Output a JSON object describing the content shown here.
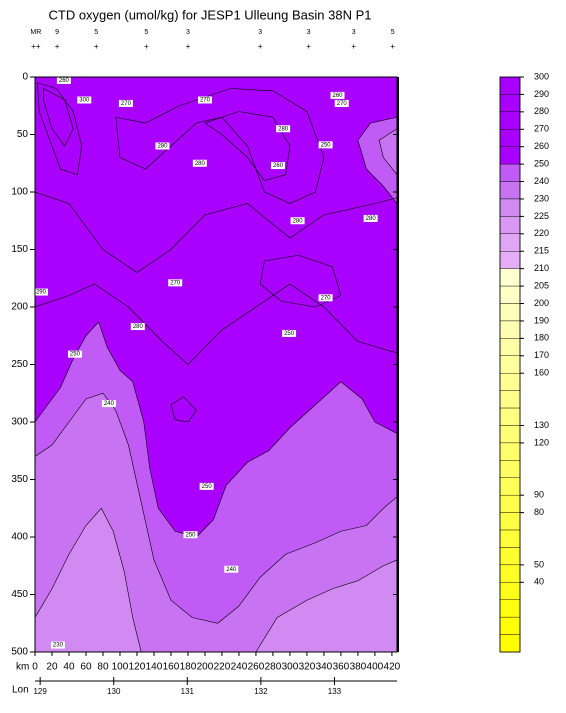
{
  "chart_data": {
    "type": "contour",
    "title": "CTD oxygen (umol/kg) for JESP1 Ulleung Basin 38N P1",
    "xlabel": "km",
    "lon_label": "Lon",
    "xlim": [
      0,
      426
    ],
    "xticks": [
      0,
      20,
      40,
      60,
      80,
      100,
      120,
      140,
      160,
      180,
      200,
      220,
      240,
      260,
      280,
      300,
      320,
      340,
      360,
      380,
      400,
      420
    ],
    "ylim": [
      0,
      500
    ],
    "yticks": [
      0,
      50,
      100,
      150,
      200,
      250,
      300,
      350,
      400,
      450,
      500
    ],
    "lonlim": [
      128.93,
      133.85
    ],
    "lonticks": [
      129,
      130,
      131,
      132,
      133
    ],
    "stations": {
      "x": [
        1,
        26,
        72,
        131,
        180,
        265,
        322,
        375,
        421
      ],
      "labels": [
        "MR",
        "9",
        "5",
        "5",
        "3",
        "3",
        "3",
        "3",
        "5"
      ],
      "markers": [
        "++",
        "+",
        "+",
        "+",
        "+",
        "+",
        "+",
        "+",
        "+"
      ]
    },
    "colorbar": {
      "boundaries": [
        300,
        290,
        280,
        270,
        260,
        250,
        240,
        230,
        225,
        220,
        215,
        210,
        205,
        200,
        190,
        180,
        170,
        160,
        150,
        140,
        130,
        120,
        110,
        100,
        90,
        80,
        70,
        60,
        50,
        40,
        30,
        20,
        10,
        0
      ],
      "colors": [
        "#aa00ff",
        "#aa00ff",
        "#aa00ff",
        "#aa00ff",
        "#aa00ff",
        "#c05cf5",
        "#c874f2",
        "#d08af2",
        "#d898f4",
        "#e0a6f6",
        "#e6aef8",
        "#ffffd0",
        "#ffffc6",
        "#ffffbc",
        "#ffffb2",
        "#ffffa8",
        "#ffff9e",
        "#ffff94",
        "#ffff8a",
        "#ffff80",
        "#ffff76",
        "#ffff6c",
        "#ffff62",
        "#ffff58",
        "#ffff4e",
        "#ffff44",
        "#ffff3a",
        "#ffff30",
        "#ffff26",
        "#ffff1c",
        "#ffff12",
        "#ffff08",
        "#ffff00"
      ],
      "ticks": [
        300,
        290,
        280,
        270,
        260,
        250,
        240,
        230,
        225,
        220,
        215,
        210,
        205,
        200,
        190,
        180,
        170,
        160,
        130,
        120,
        90,
        80,
        50,
        40
      ]
    },
    "base_level": 250,
    "regions": [
      {
        "level": 240,
        "points": [
          [
            0,
            300
          ],
          [
            15,
            285
          ],
          [
            30,
            270
          ],
          [
            45,
            245
          ],
          [
            60,
            225
          ],
          [
            75,
            213
          ],
          [
            85,
            235
          ],
          [
            100,
            255
          ],
          [
            115,
            265
          ],
          [
            128,
            300
          ],
          [
            135,
            340
          ],
          [
            145,
            375
          ],
          [
            165,
            395
          ],
          [
            190,
            400
          ],
          [
            210,
            385
          ],
          [
            225,
            355
          ],
          [
            250,
            335
          ],
          [
            275,
            325
          ],
          [
            300,
            305
          ],
          [
            330,
            285
          ],
          [
            360,
            265
          ],
          [
            385,
            280
          ],
          [
            400,
            300
          ],
          [
            426,
            310
          ],
          [
            426,
            500
          ],
          [
            0,
            500
          ]
        ]
      },
      {
        "level": 240,
        "points": [
          [
            380,
            55
          ],
          [
            395,
            40
          ],
          [
            426,
            35
          ],
          [
            426,
            110
          ],
          [
            410,
            95
          ],
          [
            390,
            80
          ]
        ]
      },
      {
        "level": 230,
        "points": [
          [
            0,
            330
          ],
          [
            20,
            320
          ],
          [
            40,
            300
          ],
          [
            60,
            280
          ],
          [
            80,
            275
          ],
          [
            95,
            290
          ],
          [
            110,
            320
          ],
          [
            125,
            370
          ],
          [
            140,
            420
          ],
          [
            160,
            455
          ],
          [
            185,
            470
          ],
          [
            215,
            475
          ],
          [
            240,
            460
          ],
          [
            265,
            435
          ],
          [
            295,
            415
          ],
          [
            330,
            405
          ],
          [
            360,
            395
          ],
          [
            390,
            390
          ],
          [
            410,
            375
          ],
          [
            426,
            365
          ],
          [
            426,
            500
          ],
          [
            0,
            500
          ]
        ]
      },
      {
        "level": 230,
        "points": [
          [
            405,
            55
          ],
          [
            426,
            45
          ],
          [
            426,
            85
          ],
          [
            410,
            70
          ]
        ]
      },
      {
        "level": 225,
        "points": [
          [
            0,
            470
          ],
          [
            20,
            445
          ],
          [
            40,
            415
          ],
          [
            60,
            390
          ],
          [
            78,
            375
          ],
          [
            92,
            395
          ],
          [
            105,
            430
          ],
          [
            115,
            470
          ],
          [
            125,
            500
          ],
          [
            0,
            500
          ]
        ]
      },
      {
        "level": 225,
        "points": [
          [
            260,
            500
          ],
          [
            285,
            470
          ],
          [
            320,
            455
          ],
          [
            350,
            445
          ],
          [
            380,
            438
          ],
          [
            410,
            425
          ],
          [
            426,
            420
          ],
          [
            426,
            500
          ]
        ]
      }
    ],
    "contour_lines": [
      {
        "level": 270,
        "closed": true,
        "points": [
          [
            3,
            5
          ],
          [
            25,
            10
          ],
          [
            45,
            30
          ],
          [
            55,
            60
          ],
          [
            50,
            85
          ],
          [
            30,
            80
          ],
          [
            15,
            50
          ],
          [
            5,
            30
          ]
        ]
      },
      {
        "level": 280,
        "closed": true,
        "points": [
          [
            10,
            10
          ],
          [
            35,
            20
          ],
          [
            45,
            45
          ],
          [
            35,
            60
          ],
          [
            20,
            45
          ],
          [
            10,
            20
          ]
        ]
      },
      {
        "level": 270,
        "closed": true,
        "points": [
          [
            95,
            35
          ],
          [
            130,
            40
          ],
          [
            170,
            25
          ],
          [
            230,
            10
          ],
          [
            280,
            12
          ],
          [
            320,
            30
          ],
          [
            340,
            70
          ],
          [
            330,
            100
          ],
          [
            300,
            110
          ],
          [
            270,
            100
          ],
          [
            250,
            60
          ],
          [
            220,
            35
          ],
          [
            190,
            40
          ],
          [
            160,
            60
          ],
          [
            130,
            80
          ],
          [
            100,
            70
          ]
        ]
      },
      {
        "level": 280,
        "closed": true,
        "points": [
          [
            200,
            40
          ],
          [
            240,
            30
          ],
          [
            280,
            35
          ],
          [
            300,
            60
          ],
          [
            295,
            85
          ],
          [
            270,
            90
          ],
          [
            250,
            70
          ],
          [
            220,
            50
          ]
        ]
      },
      {
        "level": 260,
        "closed": false,
        "points": [
          [
            0,
            100
          ],
          [
            40,
            110
          ],
          [
            80,
            150
          ],
          [
            120,
            170
          ],
          [
            160,
            150
          ],
          [
            200,
            120
          ],
          [
            250,
            110
          ],
          [
            300,
            140
          ],
          [
            340,
            120
          ],
          [
            400,
            110
          ],
          [
            426,
            105
          ]
        ]
      },
      {
        "level": 260,
        "closed": false,
        "points": [
          [
            0,
            200
          ],
          [
            40,
            190
          ],
          [
            70,
            180
          ],
          [
            110,
            200
          ],
          [
            150,
            230
          ],
          [
            180,
            250
          ],
          [
            220,
            220
          ],
          [
            260,
            200
          ],
          [
            300,
            180
          ],
          [
            340,
            200
          ],
          [
            380,
            230
          ],
          [
            426,
            240
          ]
        ]
      },
      {
        "level": 270,
        "closed": true,
        "points": [
          [
            160,
            285
          ],
          [
            175,
            278
          ],
          [
            190,
            290
          ],
          [
            180,
            300
          ],
          [
            165,
            298
          ]
        ]
      },
      {
        "level": 280,
        "closed": true,
        "points": [
          [
            270,
            160
          ],
          [
            310,
            155
          ],
          [
            350,
            165
          ],
          [
            360,
            190
          ],
          [
            330,
            200
          ],
          [
            290,
            195
          ],
          [
            265,
            180
          ]
        ]
      }
    ],
    "contour_labels": [
      {
        "text": 260,
        "x": 34,
        "y": 3
      },
      {
        "text": 300,
        "x": 58,
        "y": 20
      },
      {
        "text": 270,
        "x": 107,
        "y": 23
      },
      {
        "text": 270,
        "x": 200,
        "y": 20
      },
      {
        "text": 280,
        "x": 292,
        "y": 45
      },
      {
        "text": 260,
        "x": 356,
        "y": 16
      },
      {
        "text": 270,
        "x": 361,
        "y": 23
      },
      {
        "text": 250,
        "x": 342,
        "y": 59
      },
      {
        "text": 280,
        "x": 150,
        "y": 60
      },
      {
        "text": 280,
        "x": 194,
        "y": 75
      },
      {
        "text": 260,
        "x": 286,
        "y": 77
      },
      {
        "text": 280,
        "x": 309,
        "y": 125
      },
      {
        "text": 280,
        "x": 395,
        "y": 123
      },
      {
        "text": 290,
        "x": 7,
        "y": 187
      },
      {
        "text": 270,
        "x": 165,
        "y": 179
      },
      {
        "text": 270,
        "x": 342,
        "y": 192
      },
      {
        "text": 280,
        "x": 121,
        "y": 217
      },
      {
        "text": 250,
        "x": 299,
        "y": 223
      },
      {
        "text": 250,
        "x": 47,
        "y": 241
      },
      {
        "text": 240,
        "x": 87,
        "y": 284
      },
      {
        "text": 250,
        "x": 202,
        "y": 356
      },
      {
        "text": 250,
        "x": 183,
        "y": 398
      },
      {
        "text": 240,
        "x": 231,
        "y": 428
      },
      {
        "text": 230,
        "x": 27,
        "y": 494
      }
    ]
  }
}
